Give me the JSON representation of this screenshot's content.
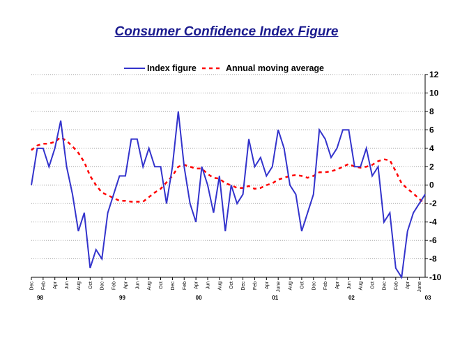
{
  "chart_data": {
    "type": "line",
    "title": "Consumer Confidence Index Figure",
    "xlabel": "",
    "ylabel": "",
    "ylim": [
      -10,
      12
    ],
    "y_ticks": [
      12,
      10,
      8,
      6,
      4,
      2,
      0,
      -2,
      -4,
      -6,
      -8,
      -10
    ],
    "y_axis_side": "right",
    "grid": "horizontal dotted",
    "legend_position": "top-center",
    "colors": {
      "title": "#1b1b8f",
      "index": "#3333cc",
      "average": "#ff0000",
      "grid": "#999999"
    },
    "month_labels": [
      "Dec",
      "Feb",
      "Apr",
      "Jun",
      "Aug",
      "Oct",
      "Dec",
      "Feb",
      "Apr",
      "Jun",
      "Aug",
      "Oct",
      "Dec",
      "Feb",
      "Apr",
      "Jun",
      "Aug",
      "Oct",
      "Dec",
      "Feb",
      "Apr",
      "June",
      "Aug",
      "Oct",
      "Dec",
      "Feb",
      "Apr",
      "Jun",
      "Aug",
      "Oct",
      "Dec",
      "Feb",
      "Apr",
      "June"
    ],
    "year_labels": [
      {
        "label": "98",
        "month_index": 0
      },
      {
        "label": "99",
        "month_index": 14
      },
      {
        "label": "00",
        "month_index": 27
      },
      {
        "label": "01",
        "month_index": 40
      },
      {
        "label": "02",
        "month_index": 53
      },
      {
        "label": "03",
        "month_index": 66
      }
    ],
    "series": [
      {
        "name": "Index figure",
        "style": "solid",
        "values": [
          0,
          4,
          4,
          2,
          4,
          7,
          2,
          -1,
          -5,
          -3,
          -9,
          -7,
          -8,
          -3,
          -1,
          1,
          1,
          5,
          5,
          2,
          4,
          2,
          2,
          -2,
          2,
          8,
          2,
          -2,
          -4,
          2,
          0,
          -3,
          1,
          -5,
          0,
          -2,
          -1,
          5,
          2,
          3,
          1,
          2,
          6,
          4,
          0,
          -1,
          -5,
          -3,
          -1,
          6,
          5,
          3,
          4,
          6,
          6,
          2,
          2,
          4,
          1,
          2,
          -4,
          -3,
          -9,
          -10,
          -5,
          -3,
          -2,
          -1
        ]
      },
      {
        "name": "Annual moving average",
        "style": "dashed",
        "values": [
          3.8,
          4.3,
          4.5,
          4.5,
          4.7,
          5.2,
          4.8,
          4.2,
          3.5,
          2.5,
          1.0,
          0,
          -0.8,
          -1.1,
          -1.4,
          -1.7,
          -1.7,
          -1.8,
          -1.8,
          -1.8,
          -1.3,
          -0.8,
          -0.4,
          0.3,
          1.0,
          2.0,
          2.2,
          2.0,
          1.8,
          1.8,
          1.2,
          0.8,
          0.7,
          0.2,
          0,
          -0.3,
          -0.3,
          -0.1,
          -0.4,
          -0.3,
          0,
          0.2,
          0.6,
          0.8,
          1.0,
          1.1,
          1.0,
          0.8,
          1.0,
          1.4,
          1.4,
          1.5,
          1.7,
          2.0,
          2.3,
          2.0,
          1.9,
          2.0,
          2.2,
          2.6,
          2.8,
          2.7,
          1.5,
          0.2,
          -0.4,
          -0.9,
          -1.5,
          -2.0
        ]
      }
    ]
  }
}
